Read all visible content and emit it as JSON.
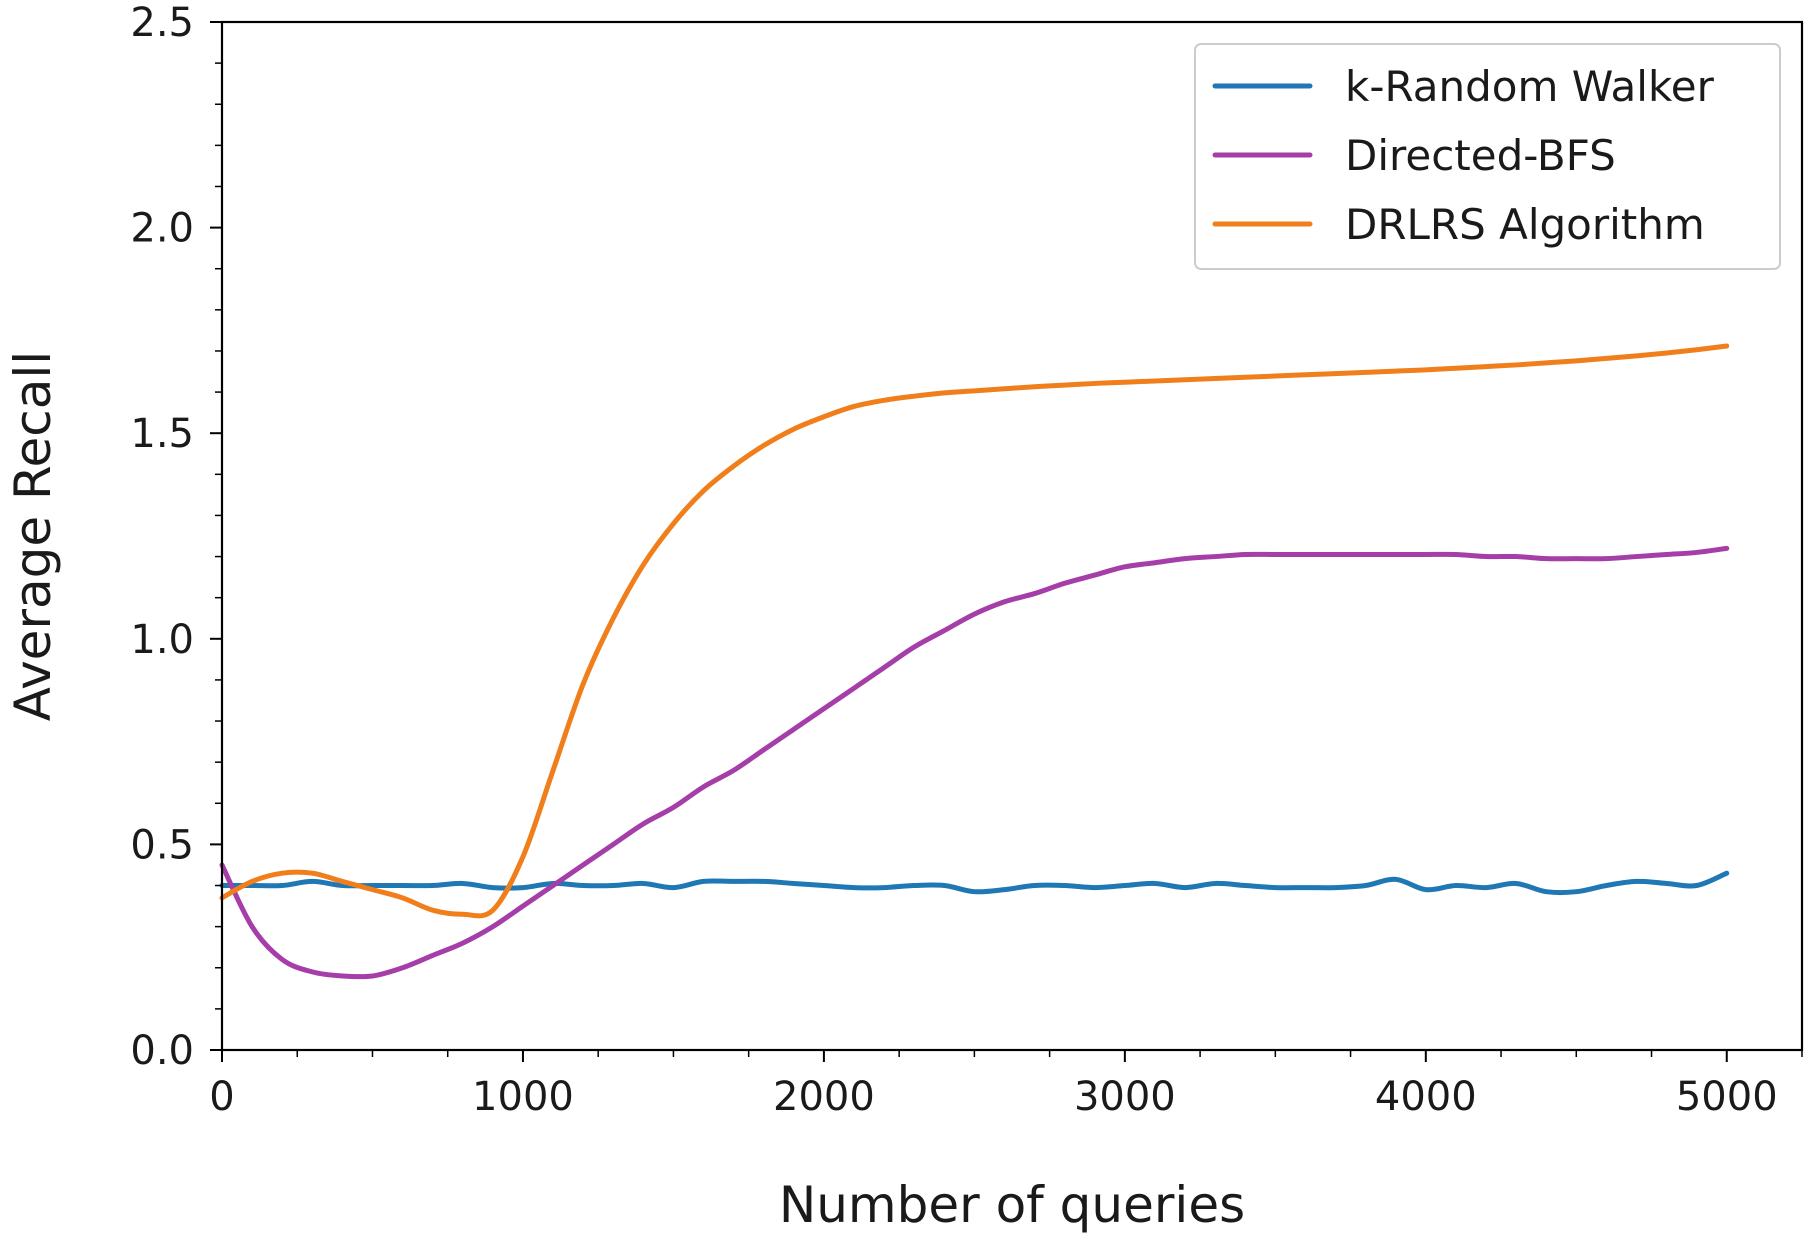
{
  "chart_data": {
    "type": "line",
    "title": "",
    "xlabel": "Number of queries",
    "ylabel": "Average Recall",
    "xlim": [
      0,
      5250
    ],
    "ylim": [
      0,
      2.5
    ],
    "xticks": [
      0,
      1000,
      2000,
      3000,
      4000,
      5000
    ],
    "xtick_labels": [
      "0",
      "1000",
      "2000",
      "3000",
      "4000",
      "5000"
    ],
    "yticks": [
      0.0,
      0.5,
      1.0,
      1.5,
      2.0,
      2.5
    ],
    "ytick_labels": [
      "0.0",
      "0.5",
      "1.0",
      "1.5",
      "2.0",
      "2.5"
    ],
    "grid": false,
    "legend_position": "top-right",
    "series": [
      {
        "name": "k-Random Walker",
        "color": "#1f77b4",
        "x": [
          0,
          100,
          200,
          300,
          400,
          500,
          600,
          700,
          800,
          900,
          1000,
          1100,
          1200,
          1300,
          1400,
          1500,
          1600,
          1700,
          1800,
          1900,
          2000,
          2100,
          2200,
          2300,
          2400,
          2500,
          2600,
          2700,
          2800,
          2900,
          3000,
          3100,
          3200,
          3300,
          3400,
          3500,
          3600,
          3700,
          3800,
          3900,
          4000,
          4100,
          4200,
          4300,
          4400,
          4500,
          4600,
          4700,
          4800,
          4900,
          5000
        ],
        "y": [
          0.4,
          0.4,
          0.4,
          0.41,
          0.4,
          0.4,
          0.4,
          0.4,
          0.405,
          0.395,
          0.395,
          0.405,
          0.4,
          0.4,
          0.405,
          0.395,
          0.41,
          0.41,
          0.41,
          0.405,
          0.4,
          0.395,
          0.395,
          0.4,
          0.4,
          0.385,
          0.39,
          0.4,
          0.4,
          0.395,
          0.4,
          0.405,
          0.395,
          0.405,
          0.4,
          0.395,
          0.395,
          0.395,
          0.4,
          0.415,
          0.39,
          0.4,
          0.395,
          0.405,
          0.385,
          0.385,
          0.4,
          0.41,
          0.405,
          0.4,
          0.43
        ]
      },
      {
        "name": "Directed-BFS",
        "color": "#a53ea8",
        "x": [
          0,
          100,
          200,
          300,
          400,
          500,
          600,
          700,
          800,
          900,
          1000,
          1100,
          1200,
          1300,
          1400,
          1500,
          1600,
          1700,
          1800,
          1900,
          2000,
          2100,
          2200,
          2300,
          2400,
          2500,
          2600,
          2700,
          2800,
          2900,
          3000,
          3100,
          3200,
          3300,
          3400,
          3500,
          3600,
          3700,
          3800,
          3900,
          4000,
          4100,
          4200,
          4300,
          4400,
          4500,
          4600,
          4700,
          4800,
          4900,
          5000
        ],
        "y": [
          0.45,
          0.3,
          0.22,
          0.19,
          0.18,
          0.18,
          0.2,
          0.23,
          0.26,
          0.3,
          0.35,
          0.4,
          0.45,
          0.5,
          0.55,
          0.59,
          0.64,
          0.68,
          0.73,
          0.78,
          0.83,
          0.88,
          0.93,
          0.98,
          1.02,
          1.06,
          1.09,
          1.11,
          1.135,
          1.155,
          1.175,
          1.185,
          1.195,
          1.2,
          1.205,
          1.205,
          1.205,
          1.205,
          1.205,
          1.205,
          1.205,
          1.205,
          1.2,
          1.2,
          1.195,
          1.195,
          1.195,
          1.2,
          1.205,
          1.21,
          1.22
        ]
      },
      {
        "name": "DRLRS Algorithm",
        "color": "#f07f1b",
        "x": [
          0,
          100,
          200,
          300,
          400,
          500,
          600,
          700,
          800,
          900,
          1000,
          1100,
          1200,
          1300,
          1400,
          1500,
          1600,
          1700,
          1800,
          1900,
          2000,
          2100,
          2200,
          2300,
          2400,
          2500,
          2600,
          2700,
          2800,
          2900,
          3000,
          3100,
          3200,
          3300,
          3400,
          3500,
          3600,
          3700,
          3800,
          3900,
          4000,
          4100,
          4200,
          4300,
          4400,
          4500,
          4600,
          4700,
          4800,
          4900,
          5000
        ],
        "y": [
          0.37,
          0.41,
          0.43,
          0.43,
          0.41,
          0.39,
          0.37,
          0.34,
          0.33,
          0.34,
          0.47,
          0.68,
          0.89,
          1.05,
          1.18,
          1.28,
          1.36,
          1.42,
          1.47,
          1.51,
          1.54,
          1.565,
          1.58,
          1.59,
          1.598,
          1.603,
          1.608,
          1.613,
          1.617,
          1.621,
          1.624,
          1.627,
          1.63,
          1.633,
          1.636,
          1.639,
          1.642,
          1.645,
          1.648,
          1.651,
          1.654,
          1.658,
          1.662,
          1.666,
          1.671,
          1.676,
          1.682,
          1.688,
          1.695,
          1.703,
          1.712
        ]
      }
    ]
  }
}
